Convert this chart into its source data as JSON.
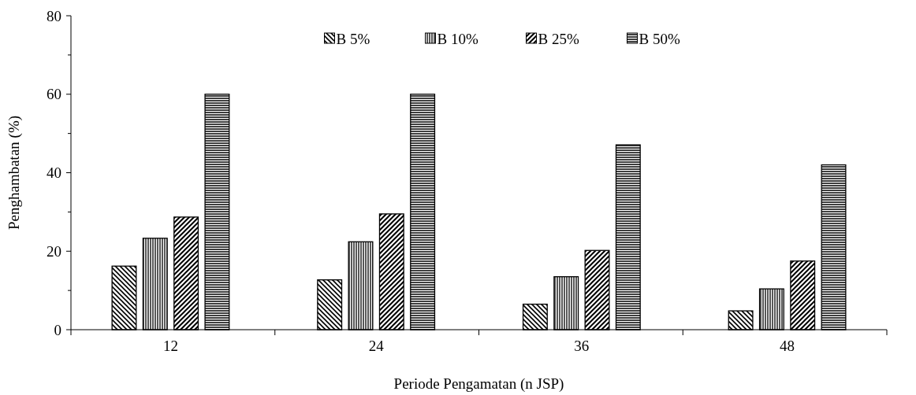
{
  "chart_data": {
    "type": "bar",
    "xlabel": "Periode Pengamatan (n JSP)",
    "ylabel": "Penghambatan (%)",
    "categories": [
      "12",
      "24",
      "36",
      "48"
    ],
    "series": [
      {
        "name": "B 5%",
        "color": "#000000",
        "values": [
          16.2,
          12.7,
          6.5,
          4.8
        ]
      },
      {
        "name": "B 10%",
        "color": "#000000",
        "values": [
          23.3,
          22.4,
          13.5,
          10.4
        ]
      },
      {
        "name": "B 25%",
        "color": "#000000",
        "values": [
          28.7,
          29.5,
          20.2,
          17.5
        ]
      },
      {
        "name": "B 50%",
        "color": "#000000",
        "values": [
          60,
          60,
          47.1,
          42
        ]
      }
    ],
    "ylim": [
      0,
      80
    ],
    "yticks": [
      0,
      {
        "value": 10,
        "label": null
      },
      20,
      {
        "value": 30,
        "label": null
      },
      40,
      {
        "value": 50,
        "label": null
      },
      60,
      {
        "value": 70,
        "label": null
      },
      80
    ],
    "legend": "top"
  }
}
